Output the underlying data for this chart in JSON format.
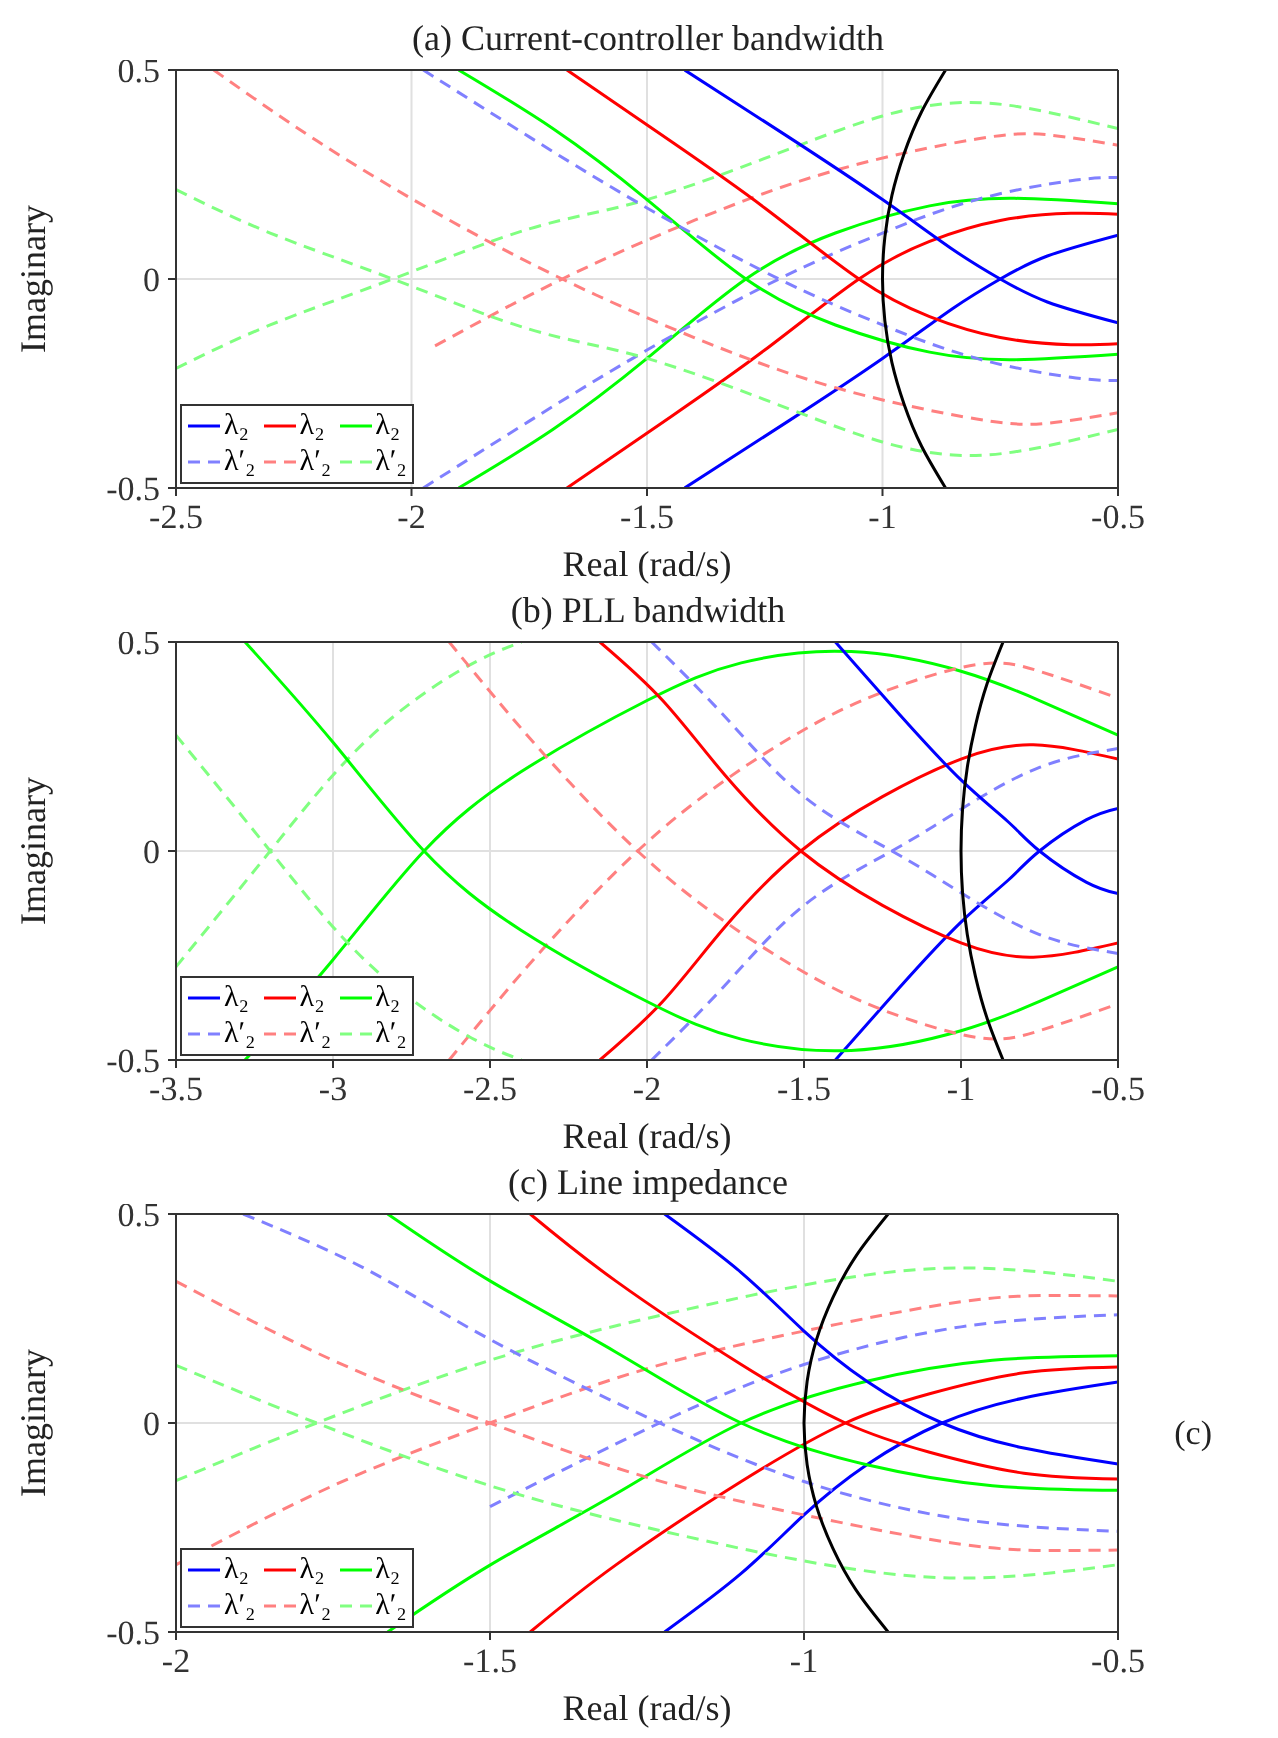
{
  "chart_data": [
    {
      "type": "line",
      "title": "(a) Current-controller bandwidth",
      "xlabel": "Real (rad/s)",
      "ylabel": "Imaginary",
      "xlim": [
        -2.5,
        -0.5
      ],
      "xticks": [
        -2.5,
        -2,
        -1.5,
        -1,
        -0.5
      ],
      "ylim": [
        -0.5,
        0.5
      ],
      "yticks": [
        -0.5,
        0,
        0.5
      ],
      "grid": true,
      "legend": "bottom left",
      "marker": "none",
      "series": [
        {
          "name": "λ₂",
          "color": "#0000ff",
          "line_style": "solid",
          "x": [
            -1.42,
            -1.2,
            -1.0,
            -0.85,
            -0.75,
            -0.65,
            -0.5
          ],
          "values": [
            -0.5,
            -0.34,
            -0.19,
            -0.07,
            0,
            0.055,
            0.105
          ]
        },
        {
          "name": "λ₂",
          "color": "#ff0000",
          "line_style": "solid",
          "x": [
            -1.67,
            -1.45,
            -1.25,
            -1.05,
            -0.9,
            -0.75,
            -0.6,
            -0.5
          ],
          "values": [
            -0.5,
            -0.33,
            -0.17,
            0,
            0.09,
            0.14,
            0.157,
            0.155
          ]
        },
        {
          "name": "λ₂",
          "color": "#00ff00",
          "line_style": "solid",
          "x": [
            -1.9,
            -1.7,
            -1.5,
            -1.29,
            -1.1,
            -0.9,
            -0.72,
            -0.5
          ],
          "values": [
            -0.5,
            -0.36,
            -0.19,
            0,
            0.11,
            0.175,
            0.193,
            0.18
          ]
        },
        {
          "name": "λ′₂",
          "color": "#8080ff",
          "line_style": "dashed",
          "x": [
            -1.975,
            -1.75,
            -1.5,
            -1.22,
            -1.0,
            -0.8,
            -0.6,
            -0.5
          ],
          "values": [
            -0.5,
            -0.34,
            -0.17,
            0,
            0.11,
            0.19,
            0.235,
            0.243
          ]
        },
        {
          "name": "λ′₂",
          "color": "#ff8080",
          "line_style": "dashed",
          "x": [
            -1.95,
            -1.68,
            -1.4,
            -1.1,
            -0.8,
            -0.65,
            -0.5
          ],
          "values": [
            -0.16,
            0,
            0.14,
            0.26,
            0.335,
            0.345,
            0.32
          ]
        },
        {
          "name": "λ′₂",
          "color": "#80ff80",
          "line_style": "dashed",
          "x": [
            -2.5,
            -2.3,
            -2.04,
            -1.75,
            -1.5,
            -1.2,
            -1.0,
            -0.85,
            -0.7,
            -0.5
          ],
          "values": [
            -0.214,
            -0.11,
            0,
            0.12,
            0.19,
            0.31,
            0.39,
            0.421,
            0.41,
            0.36
          ]
        },
        {
          "color": "#0000ff",
          "line_style": "solid",
          "x": [
            -1.42,
            -1.2,
            -1.0,
            -0.85,
            -0.75,
            -0.65,
            -0.5
          ],
          "values": [
            0.5,
            0.34,
            0.19,
            0.07,
            0,
            -0.055,
            -0.105
          ]
        },
        {
          "color": "#ff0000",
          "line_style": "solid",
          "x": [
            -1.67,
            -1.45,
            -1.25,
            -1.05,
            -0.9,
            -0.75,
            -0.6,
            -0.5
          ],
          "values": [
            0.5,
            0.33,
            0.17,
            0,
            -0.09,
            -0.14,
            -0.157,
            -0.155
          ]
        },
        {
          "color": "#00ff00",
          "line_style": "solid",
          "x": [
            -1.9,
            -1.7,
            -1.5,
            -1.29,
            -1.1,
            -0.9,
            -0.72,
            -0.5
          ],
          "values": [
            0.5,
            0.36,
            0.19,
            0,
            -0.11,
            -0.175,
            -0.193,
            -0.18
          ]
        },
        {
          "color": "#8080ff",
          "line_style": "dashed",
          "x": [
            -1.975,
            -1.75,
            -1.5,
            -1.22,
            -1.0,
            -0.8,
            -0.6,
            -0.5
          ],
          "values": [
            0.5,
            0.34,
            0.17,
            0,
            -0.11,
            -0.19,
            -0.235,
            -0.243
          ]
        },
        {
          "color": "#ff8080",
          "line_style": "dashed",
          "x": [
            -2.42,
            -2.2,
            -1.95,
            -1.68,
            -1.4,
            -1.1,
            -0.8,
            -0.65,
            -0.5
          ],
          "values": [
            0.5,
            0.33,
            0.16,
            0,
            -0.14,
            -0.26,
            -0.335,
            -0.345,
            -0.32
          ]
        },
        {
          "color": "#80ff80",
          "line_style": "dashed",
          "x": [
            -2.5,
            -2.3,
            -2.04,
            -1.75,
            -1.5,
            -1.2,
            -1.0,
            -0.85,
            -0.7,
            -0.5
          ],
          "values": [
            0.214,
            0.11,
            0,
            -0.12,
            -0.19,
            -0.31,
            -0.39,
            -0.421,
            -0.41,
            -0.36
          ]
        },
        {
          "color": "#000000",
          "line_style": "solid",
          "x": [
            -0.866,
            -0.917,
            -0.954,
            -0.98,
            -0.995,
            -1,
            -0.995,
            -0.98,
            -0.954,
            -0.917,
            -0.866
          ],
          "values": [
            -0.5,
            -0.4,
            -0.3,
            -0.2,
            -0.1,
            0,
            0.1,
            0.2,
            0.3,
            0.4,
            0.5
          ]
        }
      ]
    },
    {
      "type": "line",
      "title": "(b) PLL bandwidth",
      "xlabel": "Real (rad/s)",
      "ylabel": "Imaginary",
      "xlim": [
        -3.5,
        -0.5
      ],
      "xticks": [
        -3.5,
        -3,
        -2.5,
        -2,
        -1.5,
        -1,
        -0.5
      ],
      "ylim": [
        -0.5,
        0.5
      ],
      "yticks": [
        -0.5,
        0,
        0.5
      ],
      "grid": true,
      "legend": "bottom left",
      "marker": "none",
      "series": [
        {
          "name": "λ₂",
          "color": "#0000ff",
          "line_style": "solid",
          "x": [
            -1.4,
            -1.2,
            -1.0,
            -0.85,
            -0.75,
            -0.6,
            -0.5
          ],
          "values": [
            -0.5,
            -0.33,
            -0.17,
            -0.07,
            0,
            0.075,
            0.102
          ]
        },
        {
          "name": "λ₂",
          "color": "#ff0000",
          "line_style": "solid",
          "x": [
            -2.15,
            -1.95,
            -1.75,
            -1.51,
            -1.25,
            -1.0,
            -0.77,
            -0.5
          ],
          "values": [
            -0.5,
            -0.36,
            -0.18,
            0,
            0.13,
            0.22,
            0.254,
            0.22
          ]
        },
        {
          "name": "λ₂",
          "color": "#00ff00",
          "line_style": "solid",
          "x": [
            -3.28,
            -3.0,
            -2.71,
            -2.4,
            -2.0,
            -1.7,
            -1.35,
            -1.0,
            -0.75,
            -0.5
          ],
          "values": [
            -0.5,
            -0.26,
            0,
            0.19,
            0.36,
            0.45,
            0.477,
            0.43,
            0.36,
            0.277
          ]
        },
        {
          "name": "λ′₂",
          "color": "#8080ff",
          "line_style": "dashed",
          "x": [
            -1.985,
            -1.75,
            -1.5,
            -1.22,
            -1.0,
            -0.75,
            -0.5
          ],
          "values": [
            -0.5,
            -0.32,
            -0.13,
            0,
            0.1,
            0.2,
            0.245
          ]
        },
        {
          "name": "λ′₂",
          "color": "#ff8080",
          "line_style": "dashed",
          "x": [
            -2.63,
            -2.35,
            -2.03,
            -1.75,
            -1.5,
            -1.25,
            -0.95,
            -0.75,
            -0.5
          ],
          "values": [
            -0.5,
            -0.25,
            0,
            0.17,
            0.29,
            0.38,
            0.446,
            0.43,
            0.366
          ]
        },
        {
          "name": "λ′₂",
          "color": "#80ff80",
          "line_style": "dashed",
          "x": [
            -3.5,
            -3.2,
            -2.9,
            -2.6,
            -2.4
          ],
          "values": [
            -0.277,
            0,
            0.26,
            0.43,
            0.5
          ]
        },
        {
          "color": "#0000ff",
          "line_style": "solid",
          "x": [
            -1.4,
            -1.2,
            -1.0,
            -0.85,
            -0.75,
            -0.6,
            -0.5
          ],
          "values": [
            0.5,
            0.33,
            0.17,
            0.07,
            0,
            -0.075,
            -0.102
          ]
        },
        {
          "color": "#ff0000",
          "line_style": "solid",
          "x": [
            -2.15,
            -1.95,
            -1.75,
            -1.51,
            -1.25,
            -1.0,
            -0.77,
            -0.5
          ],
          "values": [
            0.5,
            0.36,
            0.18,
            0,
            -0.13,
            -0.22,
            -0.254,
            -0.22
          ]
        },
        {
          "color": "#00ff00",
          "line_style": "solid",
          "x": [
            -3.28,
            -3.0,
            -2.71,
            -2.4,
            -2.0,
            -1.7,
            -1.35,
            -1.0,
            -0.75,
            -0.5
          ],
          "values": [
            0.5,
            0.26,
            0,
            -0.19,
            -0.36,
            -0.45,
            -0.477,
            -0.43,
            -0.36,
            -0.277
          ]
        },
        {
          "color": "#8080ff",
          "line_style": "dashed",
          "x": [
            -1.985,
            -1.75,
            -1.5,
            -1.22,
            -1.0,
            -0.75,
            -0.5
          ],
          "values": [
            0.5,
            0.32,
            0.13,
            0,
            -0.1,
            -0.2,
            -0.245
          ]
        },
        {
          "color": "#ff8080",
          "line_style": "dashed",
          "x": [
            -2.63,
            -2.35,
            -2.03,
            -1.75,
            -1.5,
            -1.25,
            -0.95,
            -0.75,
            -0.5
          ],
          "values": [
            0.5,
            0.25,
            0,
            -0.17,
            -0.29,
            -0.38,
            -0.446,
            -0.43,
            -0.366
          ]
        },
        {
          "color": "#80ff80",
          "line_style": "dashed",
          "x": [
            -3.5,
            -3.2,
            -2.9,
            -2.6,
            -2.4
          ],
          "values": [
            0.277,
            0,
            -0.26,
            -0.43,
            -0.5
          ]
        },
        {
          "color": "#000000",
          "line_style": "solid",
          "x": [
            -0.866,
            -0.917,
            -0.954,
            -0.98,
            -0.995,
            -1,
            -0.995,
            -0.98,
            -0.954,
            -0.917,
            -0.866
          ],
          "values": [
            -0.5,
            -0.4,
            -0.3,
            -0.2,
            -0.1,
            0,
            0.1,
            0.2,
            0.3,
            0.4,
            0.5
          ]
        }
      ]
    },
    {
      "type": "line",
      "title": "(c) Line impedance",
      "xlabel": "Real (rad/s)",
      "ylabel": "Imaginary",
      "annotations": [
        "(c)"
      ],
      "xlim": [
        -2,
        -0.5
      ],
      "xticks": [
        -2,
        -1.5,
        -1,
        -0.5
      ],
      "ylim": [
        -0.5,
        0.5
      ],
      "yticks": [
        -0.5,
        0,
        0.5
      ],
      "grid": true,
      "legend": "bottom left",
      "marker": "none",
      "series": [
        {
          "name": "λ₂",
          "color": "#0000ff",
          "line_style": "solid",
          "x": [
            -1.222,
            -1.1,
            -1.0,
            -0.9,
            -0.78,
            -0.65,
            -0.5
          ],
          "values": [
            -0.5,
            -0.36,
            -0.22,
            -0.1,
            0,
            0.06,
            0.098
          ]
        },
        {
          "name": "λ₂",
          "color": "#ff0000",
          "line_style": "solid",
          "x": [
            -1.436,
            -1.3,
            -1.1,
            -0.934,
            -0.8,
            -0.65,
            -0.5
          ],
          "values": [
            -0.5,
            -0.34,
            -0.14,
            0,
            0.07,
            0.12,
            0.134
          ]
        },
        {
          "name": "λ₂",
          "color": "#00ff00",
          "line_style": "solid",
          "x": [
            -1.663,
            -1.5,
            -1.3,
            -1.1,
            -0.9,
            -0.7,
            -0.5
          ],
          "values": [
            -0.5,
            -0.34,
            -0.17,
            0,
            0.1,
            0.15,
            0.161
          ]
        },
        {
          "name": "λ′₂",
          "color": "#8080ff",
          "line_style": "dashed",
          "x": [
            -1.5,
            -1.23,
            -1.0,
            -0.75,
            -0.5
          ],
          "values": [
            -0.2,
            0,
            0.14,
            0.23,
            0.259
          ]
        },
        {
          "name": "λ′₂",
          "color": "#ff8080",
          "line_style": "dashed",
          "x": [
            -2,
            -1.75,
            -1.5,
            -1.25,
            -1.0,
            -0.75,
            -0.6,
            -0.5
          ],
          "values": [
            -0.339,
            -0.15,
            0,
            0.13,
            0.22,
            0.29,
            0.305,
            0.304
          ]
        },
        {
          "name": "λ′₂",
          "color": "#80ff80",
          "line_style": "dashed",
          "x": [
            -2,
            -1.776,
            -1.5,
            -1.25,
            -1.0,
            -0.75,
            -0.5
          ],
          "values": [
            -0.138,
            0,
            0.15,
            0.25,
            0.33,
            0.371,
            0.339
          ]
        },
        {
          "color": "#0000ff",
          "line_style": "solid",
          "x": [
            -1.222,
            -1.1,
            -1.0,
            -0.9,
            -0.78,
            -0.65,
            -0.5
          ],
          "values": [
            0.5,
            0.36,
            0.22,
            0.1,
            0,
            -0.06,
            -0.098
          ]
        },
        {
          "color": "#ff0000",
          "line_style": "solid",
          "x": [
            -1.436,
            -1.3,
            -1.1,
            -0.934,
            -0.8,
            -0.65,
            -0.5
          ],
          "values": [
            0.5,
            0.34,
            0.14,
            0,
            -0.07,
            -0.12,
            -0.134
          ]
        },
        {
          "color": "#00ff00",
          "line_style": "solid",
          "x": [
            -1.663,
            -1.5,
            -1.3,
            -1.1,
            -0.9,
            -0.7,
            -0.5
          ],
          "values": [
            0.5,
            0.34,
            0.17,
            0,
            -0.1,
            -0.15,
            -0.161
          ]
        },
        {
          "color": "#8080ff",
          "line_style": "dashed",
          "x": [
            -1.893,
            -1.7,
            -1.5,
            -1.23,
            -1.0,
            -0.75,
            -0.5
          ],
          "values": [
            0.5,
            0.37,
            0.2,
            0,
            -0.14,
            -0.23,
            -0.259
          ]
        },
        {
          "color": "#ff8080",
          "line_style": "dashed",
          "x": [
            -2,
            -1.75,
            -1.5,
            -1.25,
            -1.0,
            -0.75,
            -0.6,
            -0.5
          ],
          "values": [
            0.339,
            0.15,
            0,
            -0.13,
            -0.22,
            -0.29,
            -0.305,
            -0.304
          ]
        },
        {
          "color": "#80ff80",
          "line_style": "dashed",
          "x": [
            -2,
            -1.776,
            -1.5,
            -1.25,
            -1.0,
            -0.75,
            -0.5
          ],
          "values": [
            0.138,
            0,
            -0.15,
            -0.25,
            -0.33,
            -0.371,
            -0.339
          ]
        },
        {
          "color": "#000000",
          "line_style": "solid",
          "x": [
            -0.866,
            -0.917,
            -0.954,
            -0.98,
            -0.995,
            -1,
            -0.995,
            -0.98,
            -0.954,
            -0.917,
            -0.866
          ],
          "values": [
            -0.5,
            -0.4,
            -0.3,
            -0.2,
            -0.1,
            0,
            0.1,
            0.2,
            0.3,
            0.4,
            0.5
          ]
        }
      ]
    }
  ]
}
